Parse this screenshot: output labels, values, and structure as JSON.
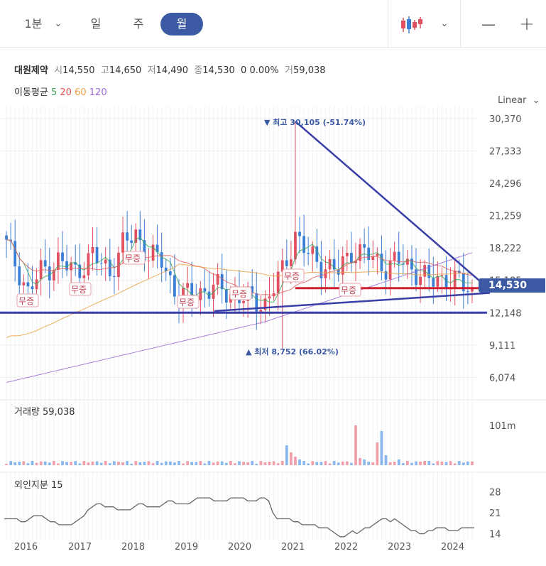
{
  "toolbar": {
    "period_select": "1분",
    "tabs": [
      "일",
      "주",
      "월"
    ],
    "active_tab": "월",
    "chart_type_icon": "candlestick-icon",
    "zoom_out": "—",
    "zoom_in": "+"
  },
  "stock": {
    "name": "대원제약",
    "open_label": "시",
    "open": "14,550",
    "high_label": "고",
    "high": "14,650",
    "low_label": "저",
    "low": "14,490",
    "close_label": "종",
    "close": "14,530",
    "change": "0",
    "change_pct": "0.00%",
    "volume_label": "거",
    "volume": "59,038"
  },
  "moving_average": {
    "label": "이동평균",
    "periods": [
      "5",
      "20",
      "60",
      "120"
    ],
    "colors": [
      "#3aa757",
      "#e05050",
      "#e8a040",
      "#9b6ad6"
    ]
  },
  "scale_mode": "Linear",
  "colors": {
    "up": "#e05060",
    "down": "#3a7fd5",
    "trend": "#3a3fa8",
    "support": "#d02030",
    "accent": "#3b5aa3"
  },
  "chart_data": [
    {
      "type": "candlestick",
      "x_labels": [
        "2016",
        "2017",
        "2018",
        "2019",
        "2020",
        "2021",
        "2022",
        "2023",
        "2024"
      ],
      "y_ticks": [
        "30,370",
        "27,333",
        "24,296",
        "21,259",
        "18,222",
        "15,185",
        "12,148",
        "9,111",
        "6,074"
      ],
      "ylim": [
        4500,
        31500
      ],
      "current_price": "14,530",
      "high_annotation": {
        "text": "▼ 최고 30,105 (-51.74%)",
        "value": 30105
      },
      "low_annotation": {
        "text": "▲ 최저 8,752 (66.02%)",
        "value": 8752
      },
      "event_labels": [
        "무증",
        "무증",
        "무증",
        "무증",
        "무증",
        "무증",
        "무증"
      ],
      "series": [
        {
          "name": "5",
          "values": []
        },
        {
          "name": "20",
          "values": []
        },
        {
          "name": "60",
          "values": []
        },
        {
          "name": "120",
          "values": []
        }
      ]
    },
    {
      "type": "bar",
      "title": "거래량",
      "last_value": "59,038",
      "y_ticks": [
        "101m"
      ]
    },
    {
      "type": "line",
      "title": "외인지분",
      "last_value": "15",
      "y_ticks": [
        "28",
        "21",
        "14"
      ],
      "ylim": [
        12,
        31
      ],
      "values": [
        19,
        19,
        19,
        19,
        18,
        18,
        19,
        20,
        20,
        20,
        19,
        18,
        18,
        17,
        17,
        17,
        17,
        18,
        19,
        20,
        22,
        23,
        24,
        24,
        23,
        23,
        23,
        22,
        22,
        22,
        22,
        23,
        24,
        24,
        23,
        23,
        23,
        23,
        24,
        25,
        25,
        24,
        24,
        24,
        24,
        25,
        26,
        26,
        26,
        26,
        25,
        25,
        25,
        25,
        26,
        26,
        26,
        26,
        25,
        25,
        25,
        26,
        26,
        25,
        21,
        19,
        19,
        19,
        19,
        18,
        18,
        17,
        17,
        17,
        17,
        16,
        16,
        16,
        15,
        14,
        13,
        13,
        14,
        15,
        14,
        15,
        16,
        16,
        17,
        18,
        19,
        19,
        18,
        19,
        18,
        17,
        16,
        15,
        15,
        14,
        14,
        15,
        15,
        16,
        16,
        16,
        15,
        15,
        15,
        16,
        16,
        16,
        16
      ]
    }
  ]
}
